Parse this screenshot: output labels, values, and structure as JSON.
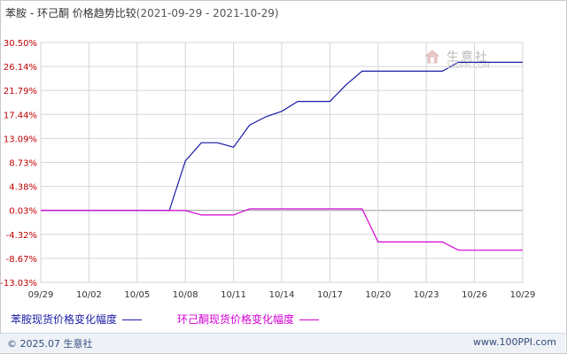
{
  "title": {
    "text": "苯胺 - 环己酮 价格趋势比较",
    "range": "(2021-09-29 - 2021-10-29)"
  },
  "watermark": {
    "name": "生意社",
    "url": "100PPI.COM"
  },
  "footer": {
    "copyright": "© 2025.07 生意社",
    "site": "www.100PPI.com"
  },
  "colors": {
    "series1": "#1a1aa6",
    "series2": "#d400d4",
    "grid": "#d6d6d6",
    "zero_line": "#999999",
    "ytick": "#c00000",
    "xtick": "#333333"
  },
  "chart_data": {
    "type": "line",
    "title": "苯胺 - 环己酮 价格趋势比较",
    "ylabel": "",
    "xlabel": "",
    "ylim": [
      -13.03,
      30.5
    ],
    "yticks": [
      "30.50%",
      "26.14%",
      "21.79%",
      "17.44%",
      "13.09%",
      "8.73%",
      "4.38%",
      "0.03%",
      "-4.32%",
      "-8.67%",
      "-13.03%"
    ],
    "ytick_values": [
      30.5,
      26.14,
      21.79,
      17.44,
      13.09,
      8.73,
      4.38,
      0.03,
      -4.32,
      -8.67,
      -13.03
    ],
    "xticks": [
      "09/29",
      "10/02",
      "10/05",
      "10/08",
      "10/11",
      "10/14",
      "10/17",
      "10/20",
      "10/23",
      "10/26",
      "10/29"
    ],
    "x": [
      "09/29",
      "09/30",
      "10/01",
      "10/02",
      "10/03",
      "10/04",
      "10/05",
      "10/06",
      "10/07",
      "10/08",
      "10/09",
      "10/10",
      "10/11",
      "10/12",
      "10/13",
      "10/14",
      "10/15",
      "10/16",
      "10/17",
      "10/18",
      "10/19",
      "10/20",
      "10/21",
      "10/22",
      "10/23",
      "10/24",
      "10/25",
      "10/26",
      "10/27",
      "10/28",
      "10/29"
    ],
    "grid": true,
    "legend_position": "bottom-left",
    "series": [
      {
        "name": "苯胺现货价格变化幅度",
        "values": [
          0,
          0,
          0,
          0,
          0,
          0,
          0,
          0,
          0,
          9.0,
          12.3,
          12.3,
          11.5,
          15.5,
          17.0,
          18.0,
          19.8,
          19.8,
          19.8,
          22.8,
          25.3,
          25.3,
          25.3,
          25.3,
          25.3,
          25.3,
          26.9,
          26.9,
          26.9,
          26.9,
          26.9
        ]
      },
      {
        "name": "环己酮现货价格变化幅度",
        "values": [
          0,
          0,
          0,
          0,
          0,
          0,
          0,
          0,
          0,
          0,
          -0.8,
          -0.8,
          -0.8,
          0.3,
          0.3,
          0.3,
          0.3,
          0.3,
          0.3,
          0.3,
          0.3,
          -5.7,
          -5.7,
          -5.7,
          -5.7,
          -5.7,
          -7.2,
          -7.2,
          -7.2,
          -7.2,
          -7.2
        ]
      }
    ]
  }
}
